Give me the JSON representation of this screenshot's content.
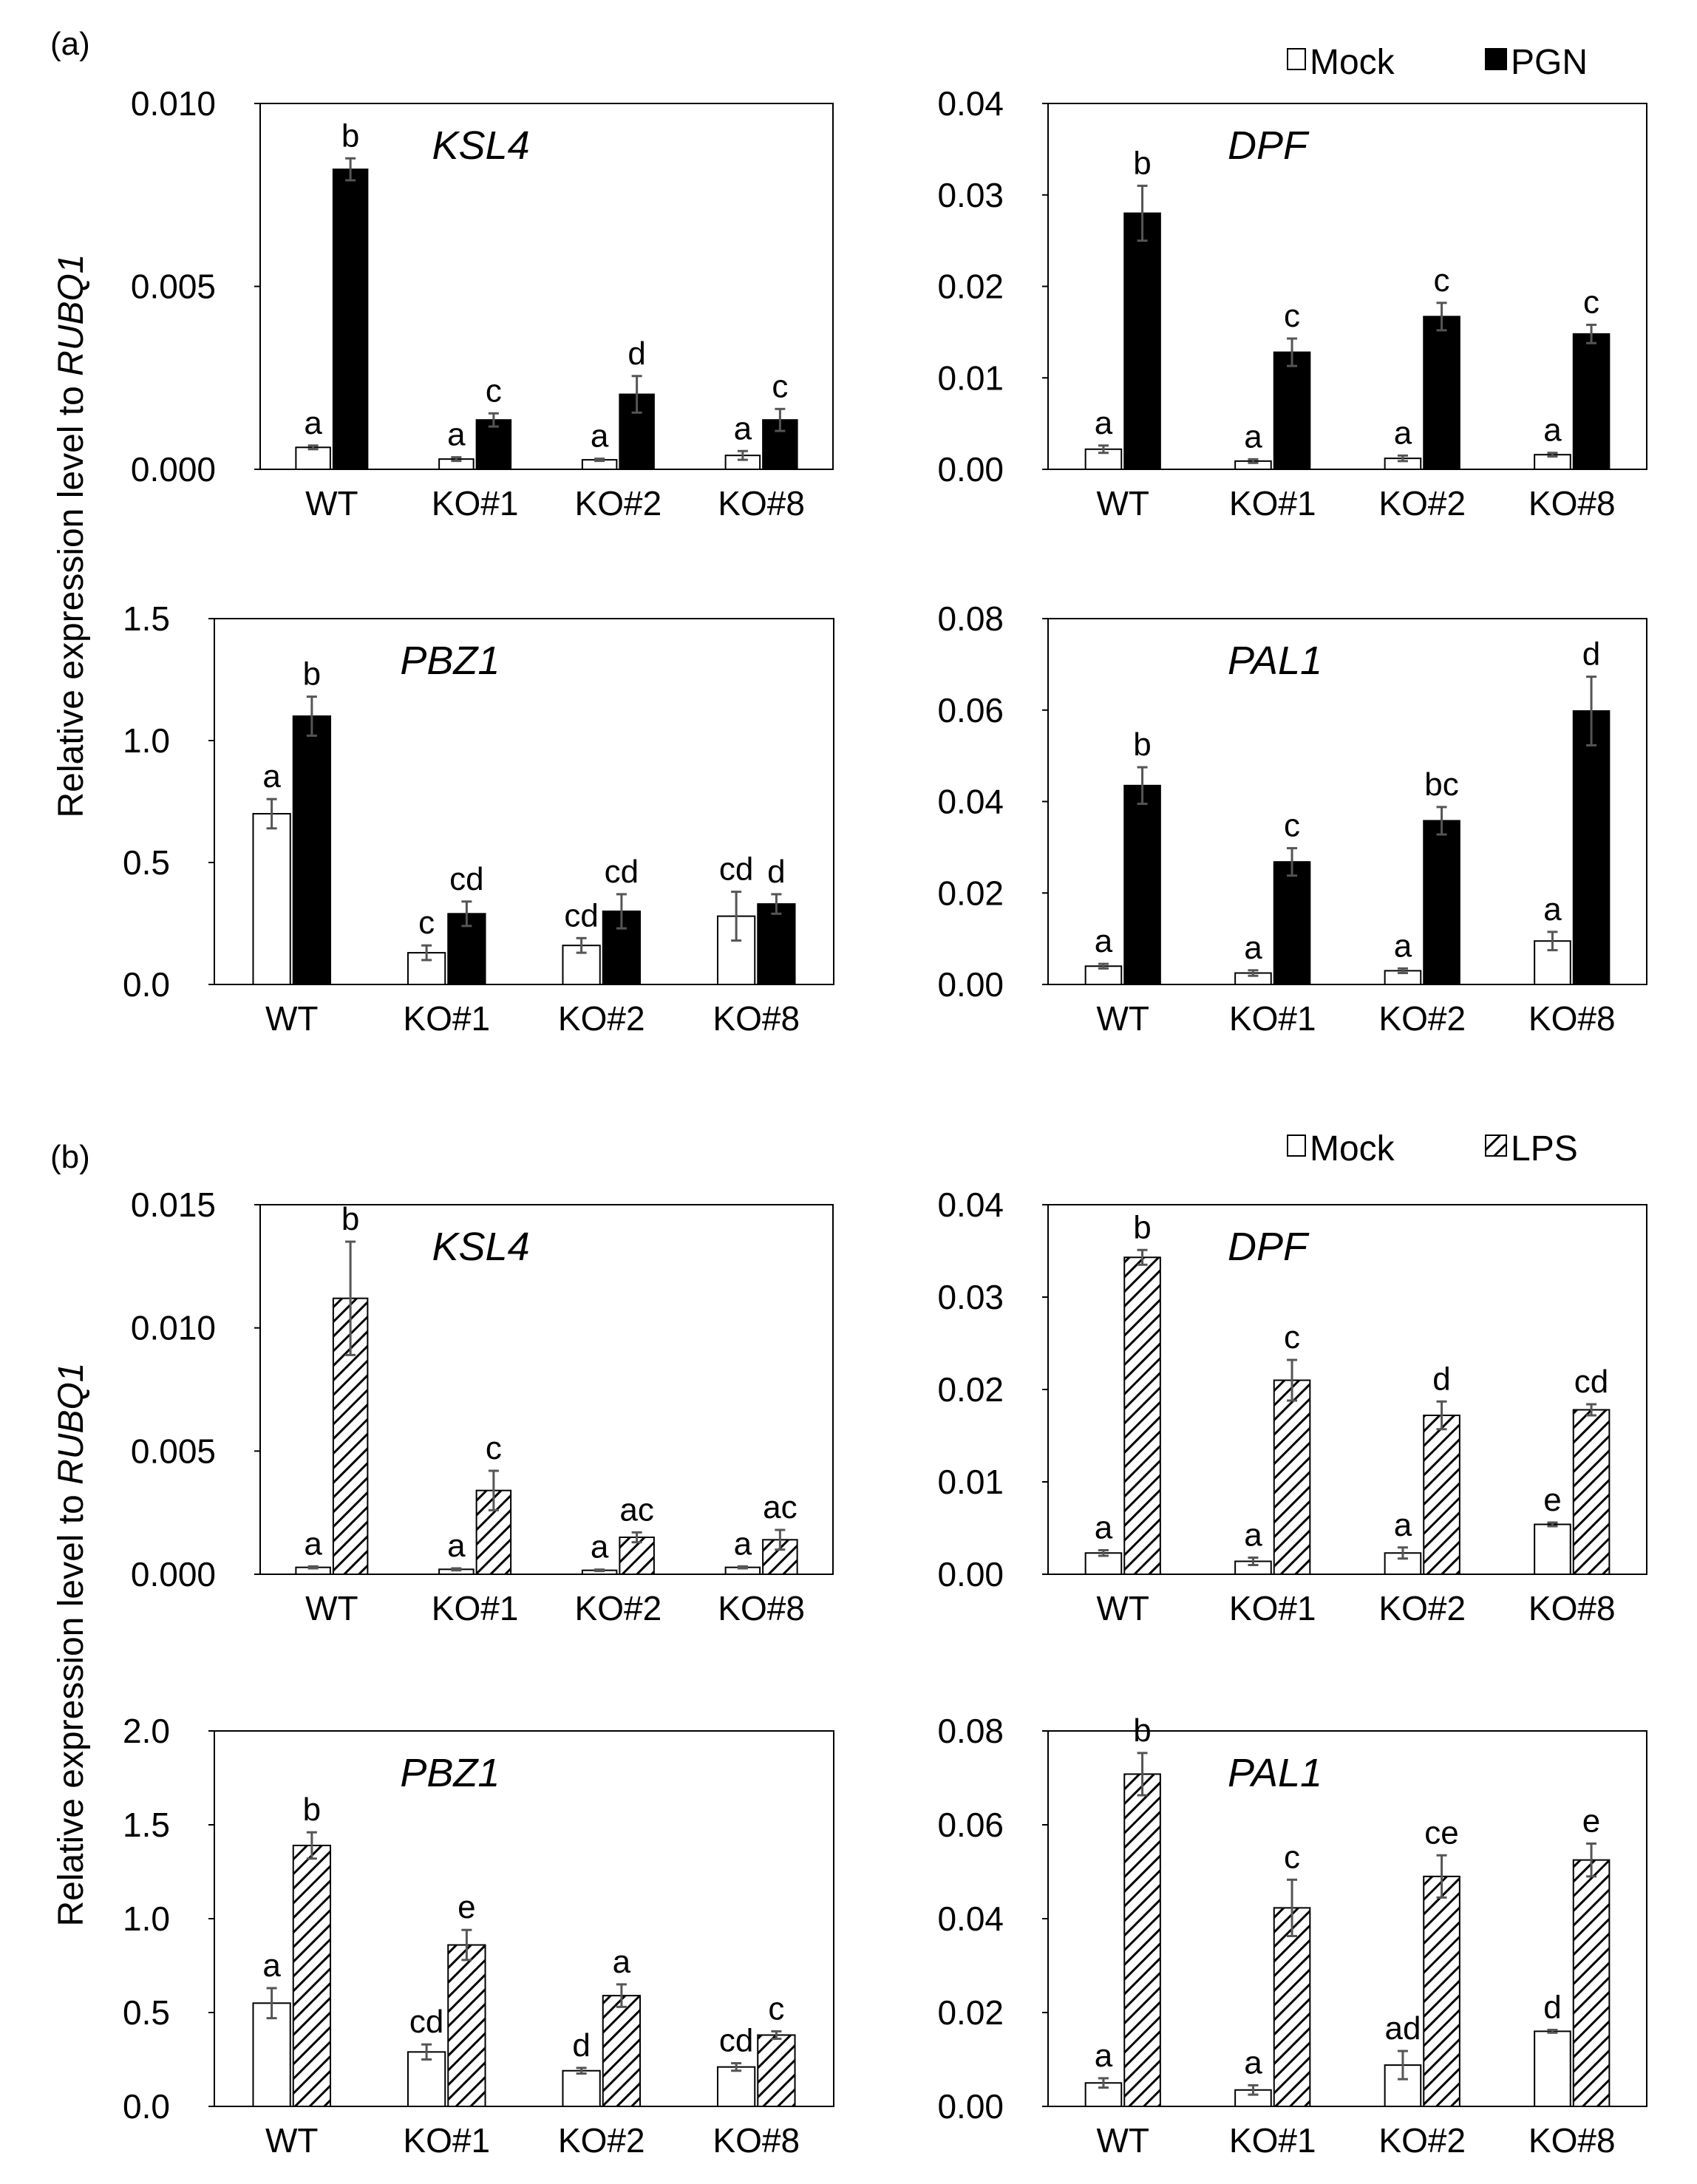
{
  "panel_labels": [
    "(a)",
    "(b)"
  ],
  "legends": [
    {
      "items": [
        {
          "label": "Mock",
          "style": "open"
        },
        {
          "label": "PGN",
          "style": "solid"
        }
      ]
    },
    {
      "items": [
        {
          "label": "Mock",
          "style": "open"
        },
        {
          "label": "LPS",
          "style": "hatch"
        }
      ]
    }
  ],
  "y_axis_label": {
    "prefix": "Relative expression level to ",
    "gene": "RUBQ1"
  },
  "chart_data": [
    {
      "type": "bar",
      "panel": "a",
      "title": "KSL4",
      "treatment": "PGN",
      "categories": [
        "WT",
        "KO#1",
        "KO#2",
        "KO#8"
      ],
      "ylim": [
        0,
        0.01
      ],
      "yticks": [
        "0.000",
        "0.005",
        "0.010"
      ],
      "series": [
        {
          "name": "Mock",
          "values": [
            0.0006,
            0.00028,
            0.00026,
            0.00038
          ],
          "errors": [
            5e-05,
            5e-05,
            3e-05,
            0.00012
          ]
        },
        {
          "name": "PGN",
          "values": [
            0.0082,
            0.00135,
            0.00205,
            0.00135
          ],
          "errors": [
            0.0003,
            0.00018,
            0.0005,
            0.0003
          ]
        }
      ],
      "letters": {
        "Mock": [
          "a",
          "a",
          "a",
          "a"
        ],
        "PGN": [
          "b",
          "c",
          "d",
          "c"
        ]
      }
    },
    {
      "type": "bar",
      "panel": "a",
      "title": "DPF",
      "treatment": "PGN",
      "categories": [
        "WT",
        "KO#1",
        "KO#2",
        "KO#8"
      ],
      "ylim": [
        0,
        0.04
      ],
      "yticks": [
        "0.00",
        "0.01",
        "0.02",
        "0.03",
        "0.04"
      ],
      "series": [
        {
          "name": "Mock",
          "values": [
            0.0022,
            0.0009,
            0.0012,
            0.0016
          ],
          "errors": [
            0.0004,
            0.0002,
            0.0003,
            0.0002
          ]
        },
        {
          "name": "PGN",
          "values": [
            0.028,
            0.0128,
            0.0167,
            0.0148
          ],
          "errors": [
            0.003,
            0.0015,
            0.0015,
            0.001
          ]
        }
      ],
      "letters": {
        "Mock": [
          "a",
          "a",
          "a",
          "a"
        ],
        "PGN": [
          "b",
          "c",
          "c",
          "c"
        ]
      }
    },
    {
      "type": "bar",
      "panel": "a",
      "title": "PBZ1",
      "treatment": "PGN",
      "categories": [
        "WT",
        "KO#1",
        "KO#2",
        "KO#8"
      ],
      "ylim": [
        0,
        1.5
      ],
      "yticks": [
        "0.0",
        "0.5",
        "1.0",
        "1.5"
      ],
      "series": [
        {
          "name": "Mock",
          "values": [
            0.7,
            0.13,
            0.16,
            0.28
          ],
          "errors": [
            0.06,
            0.03,
            0.03,
            0.1
          ]
        },
        {
          "name": "PGN",
          "values": [
            1.1,
            0.29,
            0.3,
            0.33
          ],
          "errors": [
            0.08,
            0.05,
            0.07,
            0.04
          ]
        }
      ],
      "letters": {
        "Mock": [
          "a",
          "c",
          "cd",
          "cd"
        ],
        "PGN": [
          "b",
          "cd",
          "cd",
          "d"
        ]
      }
    },
    {
      "type": "bar",
      "panel": "a",
      "title": "PAL1",
      "treatment": "PGN",
      "categories": [
        "WT",
        "KO#1",
        "KO#2",
        "KO#8"
      ],
      "ylim": [
        0,
        0.08
      ],
      "yticks": [
        "0.00",
        "0.02",
        "0.04",
        "0.06",
        "0.08"
      ],
      "series": [
        {
          "name": "Mock",
          "values": [
            0.004,
            0.0025,
            0.003,
            0.0095
          ],
          "errors": [
            0.0005,
            0.0006,
            0.0005,
            0.002
          ]
        },
        {
          "name": "PGN",
          "values": [
            0.0435,
            0.0268,
            0.0358,
            0.0598
          ],
          "errors": [
            0.004,
            0.003,
            0.003,
            0.0075
          ]
        }
      ],
      "letters": {
        "Mock": [
          "a",
          "a",
          "a",
          "a"
        ],
        "PGN": [
          "b",
          "c",
          "bc",
          "d"
        ]
      }
    },
    {
      "type": "bar",
      "panel": "b",
      "title": "KSL4",
      "treatment": "LPS",
      "categories": [
        "WT",
        "KO#1",
        "KO#2",
        "KO#8"
      ],
      "ylim": [
        0,
        0.015
      ],
      "yticks": [
        "0.000",
        "0.005",
        "0.010",
        "0.015"
      ],
      "series": [
        {
          "name": "Mock",
          "values": [
            0.00028,
            0.0002,
            0.00016,
            0.00028
          ],
          "errors": [
            4e-05,
            4e-05,
            3e-05,
            4e-05
          ]
        },
        {
          "name": "LPS",
          "values": [
            0.0112,
            0.0034,
            0.0015,
            0.0014
          ],
          "errors": [
            0.0023,
            0.0008,
            0.0002,
            0.0004
          ]
        }
      ],
      "letters": {
        "Mock": [
          "a",
          "a",
          "a",
          "a"
        ],
        "LPS": [
          "b",
          "c",
          "ac",
          "ac"
        ]
      }
    },
    {
      "type": "bar",
      "panel": "b",
      "title": "DPF",
      "treatment": "LPS",
      "categories": [
        "WT",
        "KO#1",
        "KO#2",
        "KO#8"
      ],
      "ylim": [
        0,
        0.04
      ],
      "yticks": [
        "0.00",
        "0.01",
        "0.02",
        "0.03",
        "0.04"
      ],
      "series": [
        {
          "name": "Mock",
          "values": [
            0.0023,
            0.0014,
            0.0023,
            0.0054
          ],
          "errors": [
            0.0003,
            0.0004,
            0.0006,
            0.0002
          ]
        },
        {
          "name": "LPS",
          "values": [
            0.0343,
            0.021,
            0.0172,
            0.0178
          ],
          "errors": [
            0.0008,
            0.0022,
            0.0015,
            0.0006
          ]
        }
      ],
      "letters": {
        "Mock": [
          "a",
          "a",
          "a",
          "e"
        ],
        "LPS": [
          "b",
          "c",
          "d",
          "cd"
        ]
      }
    },
    {
      "type": "bar",
      "panel": "b",
      "title": "PBZ1",
      "treatment": "LPS",
      "categories": [
        "WT",
        "KO#1",
        "KO#2",
        "KO#8"
      ],
      "ylim": [
        0,
        2.0
      ],
      "yticks": [
        "0.0",
        "0.5",
        "1.0",
        "1.5",
        "2.0"
      ],
      "series": [
        {
          "name": "Mock",
          "values": [
            0.55,
            0.29,
            0.19,
            0.21
          ],
          "errors": [
            0.08,
            0.04,
            0.015,
            0.02
          ]
        },
        {
          "name": "LPS",
          "values": [
            1.39,
            0.86,
            0.59,
            0.38
          ],
          "errors": [
            0.07,
            0.08,
            0.06,
            0.02
          ]
        }
      ],
      "letters": {
        "Mock": [
          "a",
          "cd",
          "d",
          "cd"
        ],
        "LPS": [
          "b",
          "e",
          "a",
          "c"
        ]
      }
    },
    {
      "type": "bar",
      "panel": "b",
      "title": "PAL1",
      "treatment": "LPS",
      "categories": [
        "WT",
        "KO#1",
        "KO#2",
        "KO#8"
      ],
      "ylim": [
        0,
        0.08
      ],
      "yticks": [
        "0.00",
        "0.02",
        "0.04",
        "0.06",
        "0.08"
      ],
      "series": [
        {
          "name": "Mock",
          "values": [
            0.005,
            0.0035,
            0.0088,
            0.016
          ],
          "errors": [
            0.001,
            0.001,
            0.003,
            0.0003
          ]
        },
        {
          "name": "LPS",
          "values": [
            0.0708,
            0.0423,
            0.049,
            0.0525
          ],
          "errors": [
            0.0045,
            0.006,
            0.0045,
            0.0035
          ]
        }
      ],
      "letters": {
        "Mock": [
          "a",
          "a",
          "ad",
          "d"
        ],
        "LPS": [
          "b",
          "c",
          "ce",
          "e"
        ]
      }
    }
  ]
}
